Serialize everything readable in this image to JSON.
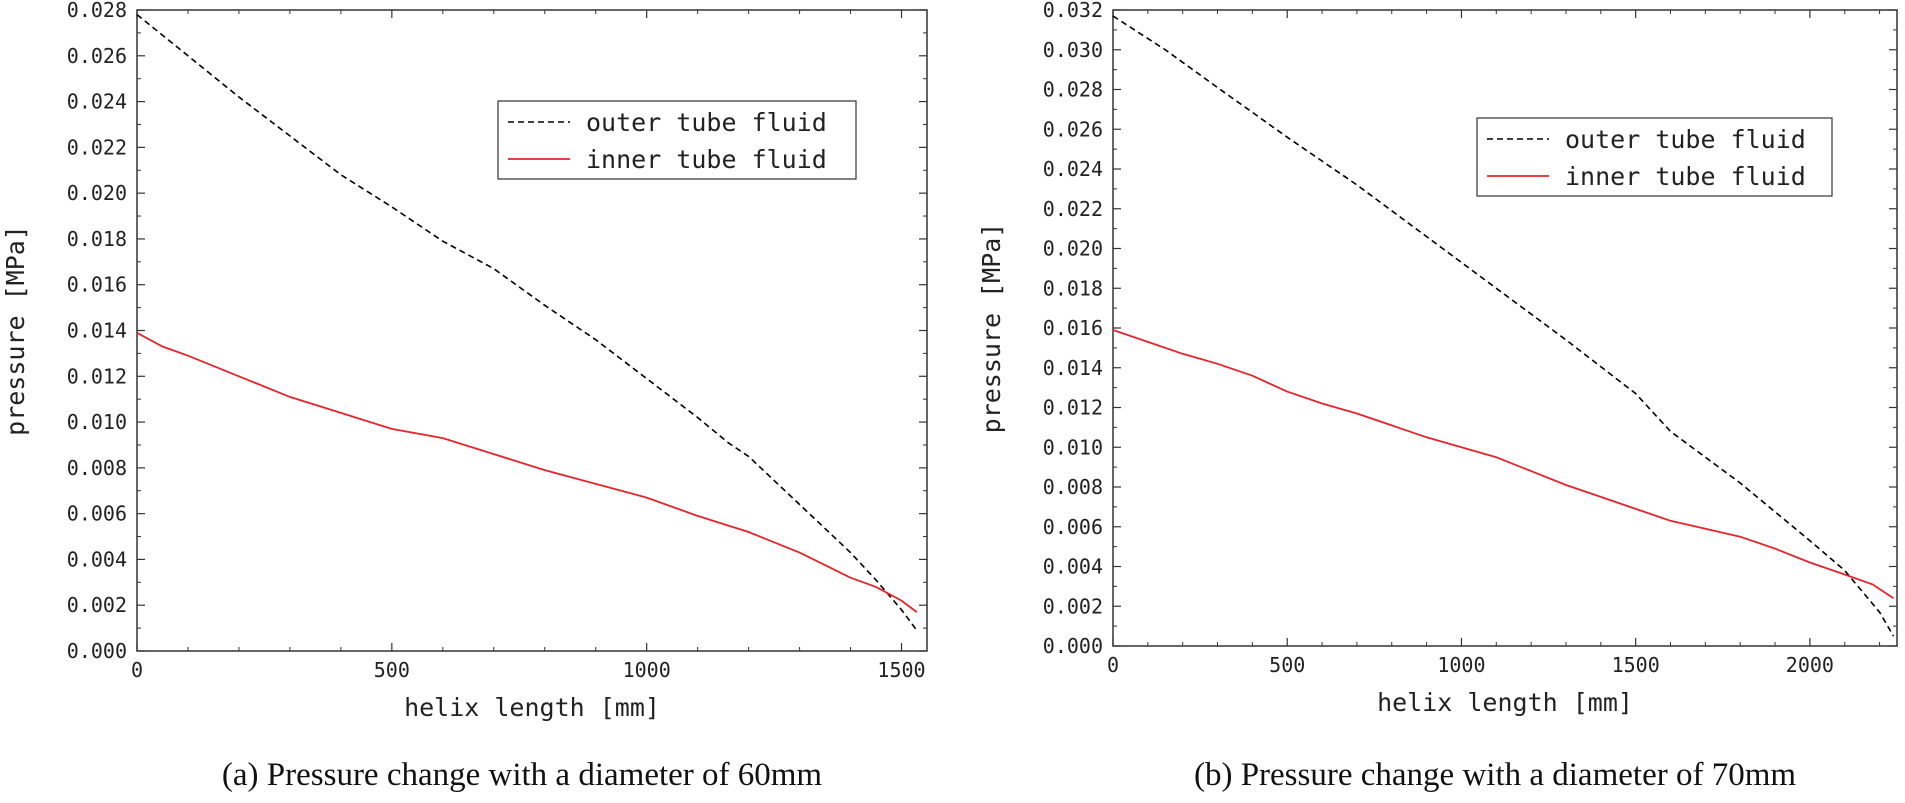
{
  "chart_data": [
    {
      "type": "line",
      "caption": "(a) Pressure change with a diameter of 60mm",
      "xlabel": "helix length [mm]",
      "ylabel": "pressure [MPa]",
      "xlim": [
        0,
        1550
      ],
      "ylim": [
        0.0,
        0.028
      ],
      "xticks": [
        0,
        500,
        1000,
        1500
      ],
      "xtick_labels": [
        "0",
        "500",
        "1000",
        "1500"
      ],
      "yticks": [
        0.0,
        0.002,
        0.004,
        0.006,
        0.008,
        0.01,
        0.012,
        0.014,
        0.016,
        0.018,
        0.02,
        0.022,
        0.024,
        0.026,
        0.028
      ],
      "ytick_labels": [
        "0.000",
        "0.002",
        "0.004",
        "0.006",
        "0.008",
        "0.010",
        "0.012",
        "0.014",
        "0.016",
        "0.018",
        "0.020",
        "0.022",
        "0.024",
        "0.026",
        "0.028"
      ],
      "legend_position": "top-right",
      "series": [
        {
          "name": "outer tube fluid",
          "style": "dashed",
          "color": "#000000",
          "x": [
            0,
            100,
            200,
            300,
            400,
            500,
            600,
            700,
            800,
            900,
            1000,
            1100,
            1160,
            1200,
            1300,
            1400,
            1450,
            1500,
            1530
          ],
          "y": [
            0.0278,
            0.026,
            0.0242,
            0.0225,
            0.0208,
            0.0194,
            0.0179,
            0.0167,
            0.0151,
            0.0136,
            0.0119,
            0.0102,
            0.0091,
            0.0085,
            0.0064,
            0.0043,
            0.0031,
            0.0018,
            0.0009
          ]
        },
        {
          "name": "inner tube fluid",
          "style": "solid",
          "color": "#e8232a",
          "x": [
            0,
            50,
            100,
            200,
            300,
            400,
            500,
            600,
            700,
            800,
            900,
            1000,
            1100,
            1200,
            1300,
            1400,
            1450,
            1500,
            1530
          ],
          "y": [
            0.0139,
            0.0133,
            0.0129,
            0.012,
            0.0111,
            0.0104,
            0.0097,
            0.0093,
            0.0086,
            0.0079,
            0.0073,
            0.0067,
            0.0059,
            0.0052,
            0.0043,
            0.0032,
            0.0028,
            0.0022,
            0.0017
          ]
        }
      ]
    },
    {
      "type": "line",
      "caption": "(b) Pressure change with a diameter of 70mm",
      "xlabel": "helix length [mm]",
      "ylabel": "pressure [MPa]",
      "xlim": [
        0,
        2250
      ],
      "ylim": [
        0.0,
        0.032
      ],
      "xticks": [
        0,
        500,
        1000,
        1500,
        2000
      ],
      "xtick_labels": [
        "0",
        "500",
        "1000",
        "1500",
        "2000"
      ],
      "yticks": [
        0.0,
        0.002,
        0.004,
        0.006,
        0.008,
        0.01,
        0.012,
        0.014,
        0.016,
        0.018,
        0.02,
        0.022,
        0.024,
        0.026,
        0.028,
        0.03,
        0.032
      ],
      "ytick_labels": [
        "0.000",
        "0.002",
        "0.004",
        "0.006",
        "0.008",
        "0.010",
        "0.012",
        "0.014",
        "0.016",
        "0.018",
        "0.020",
        "0.022",
        "0.024",
        "0.026",
        "0.028",
        "0.030",
        "0.032"
      ],
      "legend_position": "top-right",
      "series": [
        {
          "name": "outer tube fluid",
          "style": "dashed",
          "color": "#000000",
          "x": [
            0,
            150,
            300,
            500,
            700,
            900,
            1100,
            1300,
            1500,
            1600,
            1800,
            2000,
            2100,
            2200,
            2240
          ],
          "y": [
            0.0317,
            0.03,
            0.0281,
            0.0256,
            0.0232,
            0.0206,
            0.018,
            0.0154,
            0.0127,
            0.0108,
            0.0082,
            0.0053,
            0.0038,
            0.0017,
            0.0005
          ]
        },
        {
          "name": "inner tube fluid",
          "style": "solid",
          "color": "#e8232a",
          "x": [
            0,
            100,
            200,
            300,
            400,
            500,
            600,
            700,
            800,
            900,
            1000,
            1100,
            1200,
            1300,
            1400,
            1500,
            1600,
            1700,
            1800,
            1900,
            2000,
            2100,
            2180,
            2240
          ],
          "y": [
            0.0159,
            0.0153,
            0.0147,
            0.0142,
            0.0136,
            0.0128,
            0.0122,
            0.0117,
            0.0111,
            0.0105,
            0.01,
            0.0095,
            0.0088,
            0.0081,
            0.0075,
            0.0069,
            0.0063,
            0.0059,
            0.0055,
            0.0049,
            0.0042,
            0.0036,
            0.0031,
            0.0024
          ]
        }
      ]
    }
  ]
}
